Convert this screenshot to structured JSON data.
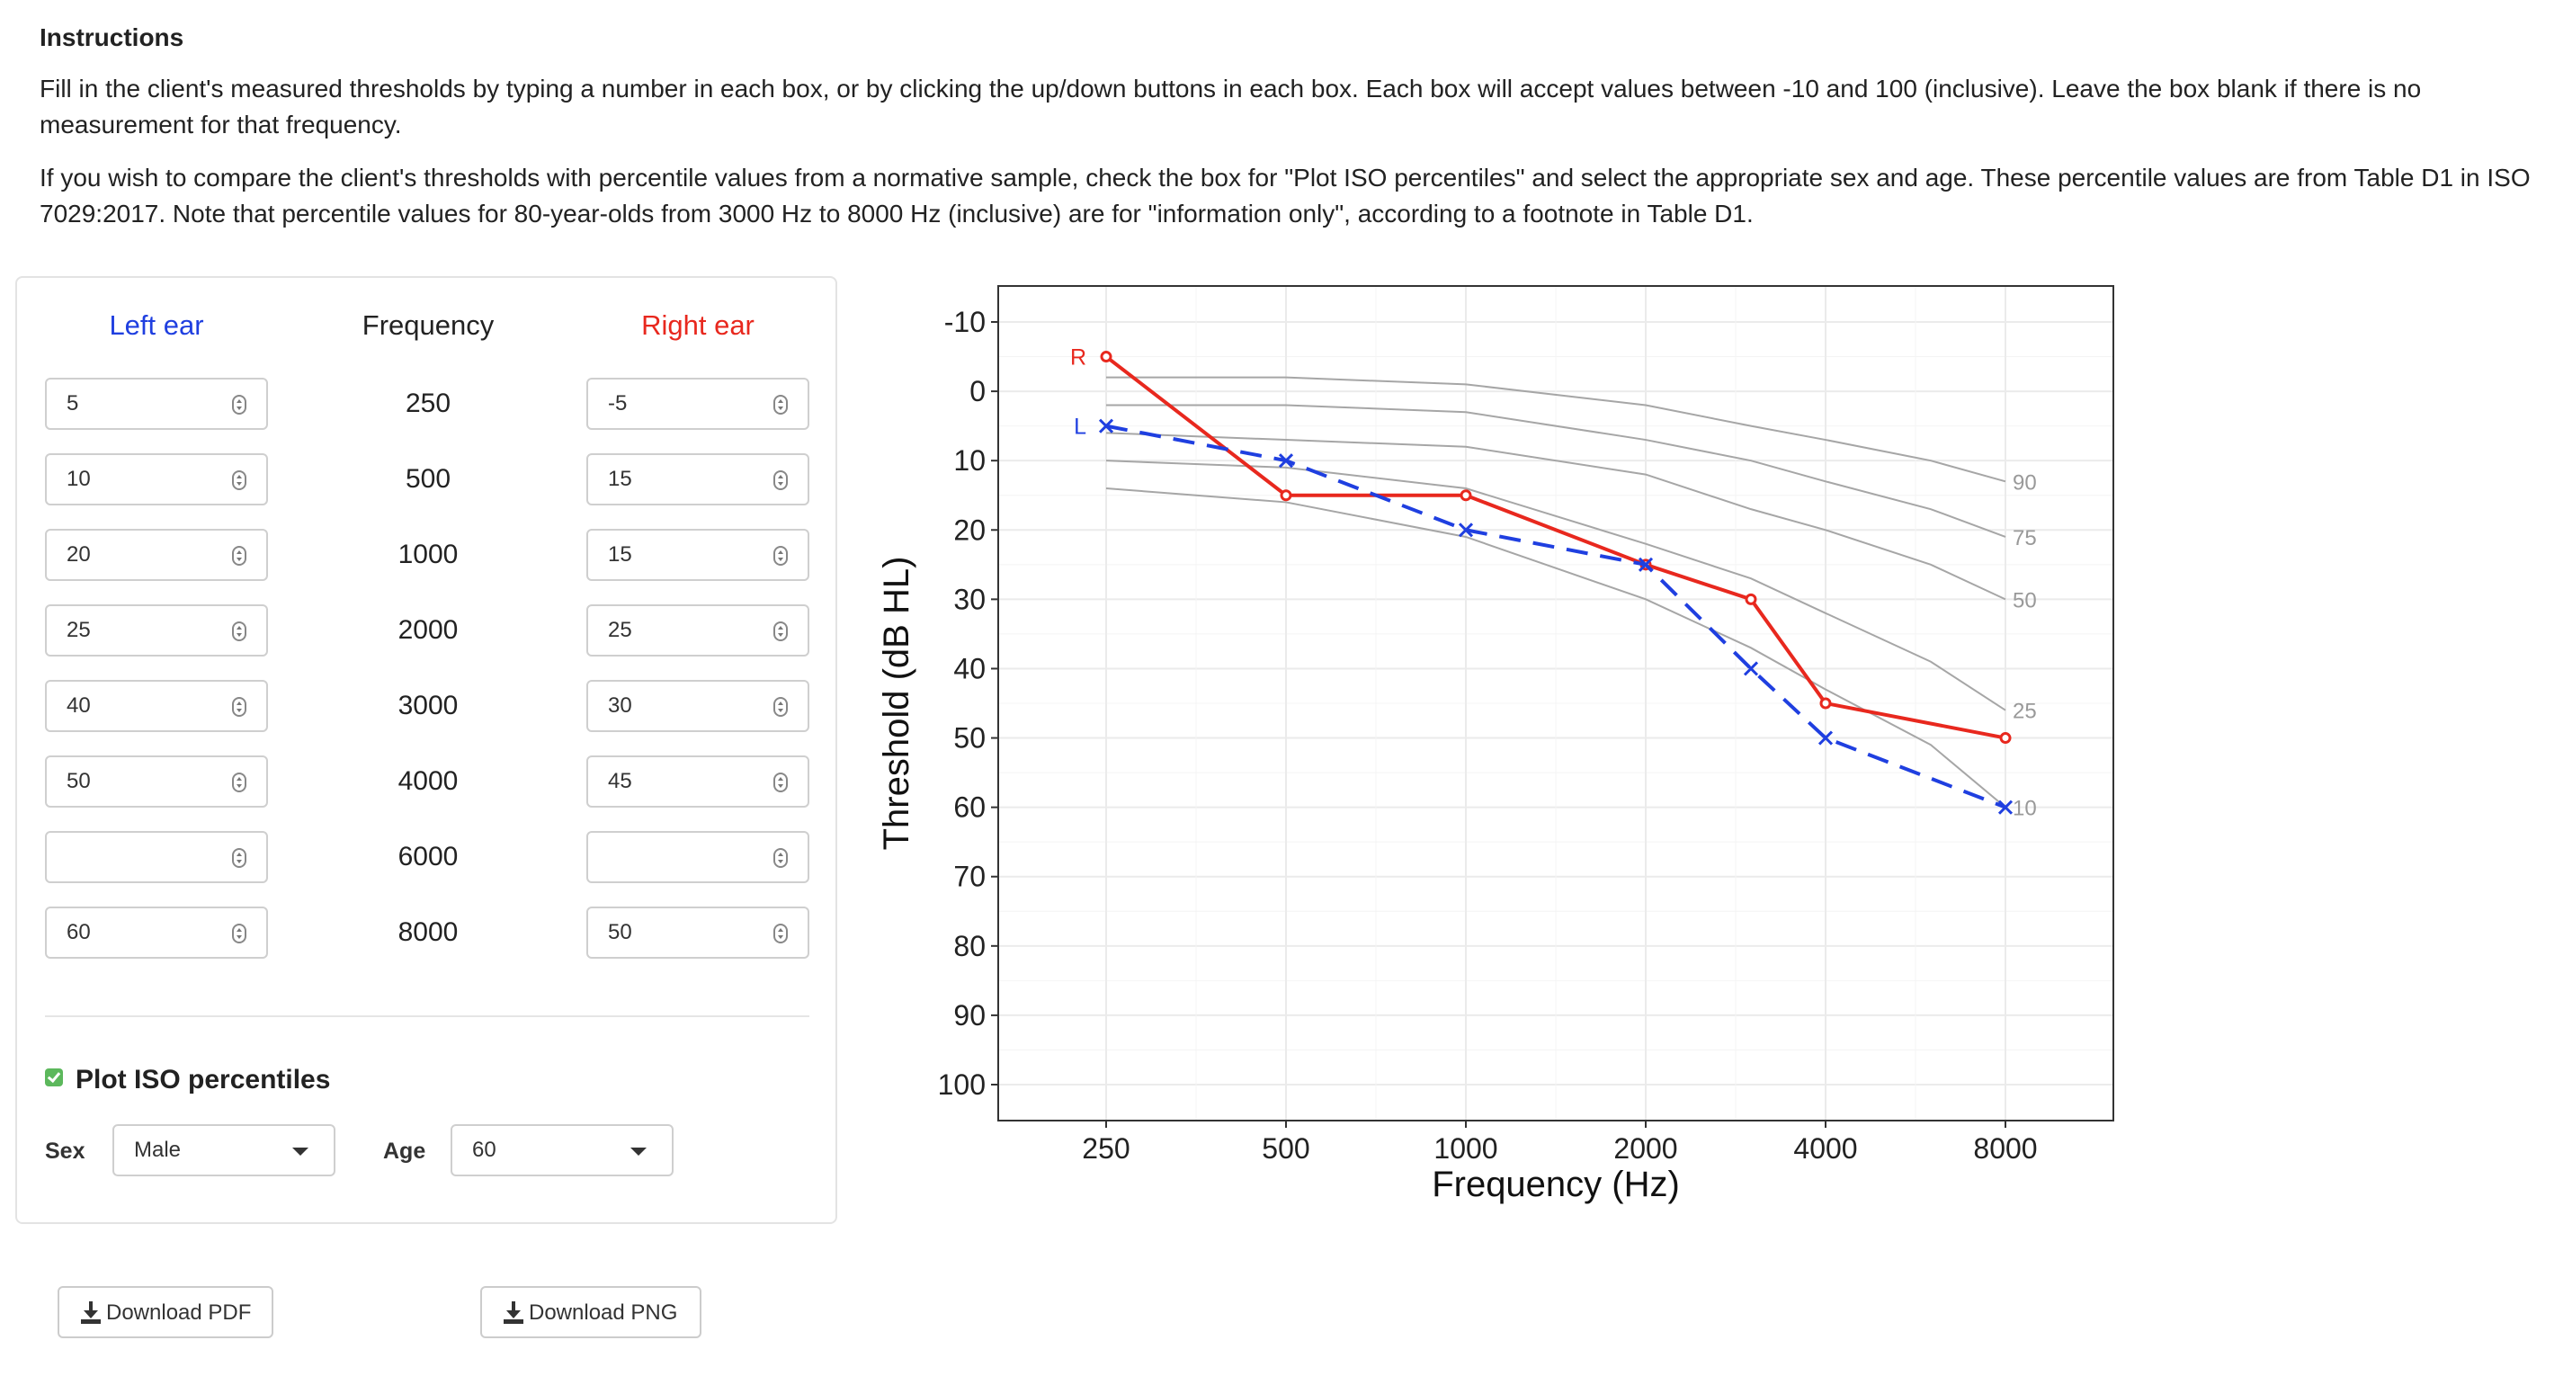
{
  "instructions": {
    "title": "Instructions",
    "p1": "Fill in the client's measured thresholds by typing a number in each box, or by clicking the up/down buttons in each box. Each box will accept values between -10 and 100 (inclusive). Leave the box blank if there is no measurement for that frequency.",
    "p2": "If you wish to compare the client's thresholds with percentile values from a normative sample, check the box for \"Plot ISO percentiles\" and select the appropriate sex and age. These percentile values are from Table D1 in ISO 7029:2017. Note that percentile values for 80-year-olds from 3000 Hz to 8000 Hz (inclusive) are for \"information only\", according to a footnote in Table D1."
  },
  "panel": {
    "left_header": "Left ear",
    "freq_header": "Frequency",
    "right_header": "Right ear",
    "rows": [
      {
        "freq": "250",
        "left": "5",
        "right": "-5"
      },
      {
        "freq": "500",
        "left": "10",
        "right": "15"
      },
      {
        "freq": "1000",
        "left": "20",
        "right": "15"
      },
      {
        "freq": "2000",
        "left": "25",
        "right": "25"
      },
      {
        "freq": "3000",
        "left": "40",
        "right": "30"
      },
      {
        "freq": "4000",
        "left": "50",
        "right": "45"
      },
      {
        "freq": "6000",
        "left": "",
        "right": ""
      },
      {
        "freq": "8000",
        "left": "60",
        "right": "50"
      }
    ],
    "checkbox_label": "Plot ISO percentiles",
    "checkbox_checked": true,
    "sex_label": "Sex",
    "sex_value": "Male",
    "age_label": "Age",
    "age_value": "60"
  },
  "buttons": {
    "pdf": "Download PDF",
    "png": "Download PNG"
  },
  "colors": {
    "left": "#1f3fe0",
    "right": "#e8281e",
    "percentile": "#a6a6a6"
  },
  "chart_data": {
    "type": "line",
    "xlabel": "Frequency (Hz)",
    "ylabel": "Threshold (dB HL)",
    "x_tick_labels": [
      "250",
      "500",
      "1000",
      "2000",
      "4000",
      "8000"
    ],
    "x_scale": "log",
    "y_tick_labels": [
      "-10",
      "0",
      "10",
      "20",
      "30",
      "40",
      "50",
      "60",
      "70",
      "80",
      "90",
      "100"
    ],
    "ylim": [
      -10,
      100
    ],
    "y_inverted": true,
    "grid": true,
    "ear_labels": {
      "right": "R",
      "left": "L"
    },
    "series": [
      {
        "name": "Right ear",
        "marker": "circle",
        "style": "solid",
        "x": [
          250,
          500,
          1000,
          2000,
          3000,
          4000,
          8000
        ],
        "values": [
          -5,
          15,
          15,
          25,
          30,
          45,
          50
        ]
      },
      {
        "name": "Left ear",
        "marker": "x",
        "style": "dashed",
        "x": [
          250,
          500,
          1000,
          2000,
          3000,
          4000,
          8000
        ],
        "values": [
          5,
          10,
          20,
          25,
          40,
          50,
          60
        ]
      }
    ],
    "percentiles": [
      {
        "label": "90",
        "x": [
          250,
          500,
          1000,
          2000,
          3000,
          4000,
          6000,
          8000
        ],
        "values": [
          -2,
          -2,
          -1,
          2,
          5,
          7,
          10,
          13
        ]
      },
      {
        "label": "75",
        "x": [
          250,
          500,
          1000,
          2000,
          3000,
          4000,
          6000,
          8000
        ],
        "values": [
          2,
          2,
          3,
          7,
          10,
          13,
          17,
          21
        ]
      },
      {
        "label": "50",
        "x": [
          250,
          500,
          1000,
          2000,
          3000,
          4000,
          6000,
          8000
        ],
        "values": [
          6,
          7,
          8,
          12,
          17,
          20,
          25,
          30
        ]
      },
      {
        "label": "25",
        "x": [
          250,
          500,
          1000,
          2000,
          3000,
          4000,
          6000,
          8000
        ],
        "values": [
          10,
          11,
          14,
          22,
          27,
          32,
          39,
          46
        ]
      },
      {
        "label": "10",
        "x": [
          250,
          500,
          1000,
          2000,
          3000,
          4000,
          6000,
          8000
        ],
        "values": [
          14,
          16,
          21,
          30,
          37,
          43,
          51,
          60
        ]
      }
    ]
  }
}
